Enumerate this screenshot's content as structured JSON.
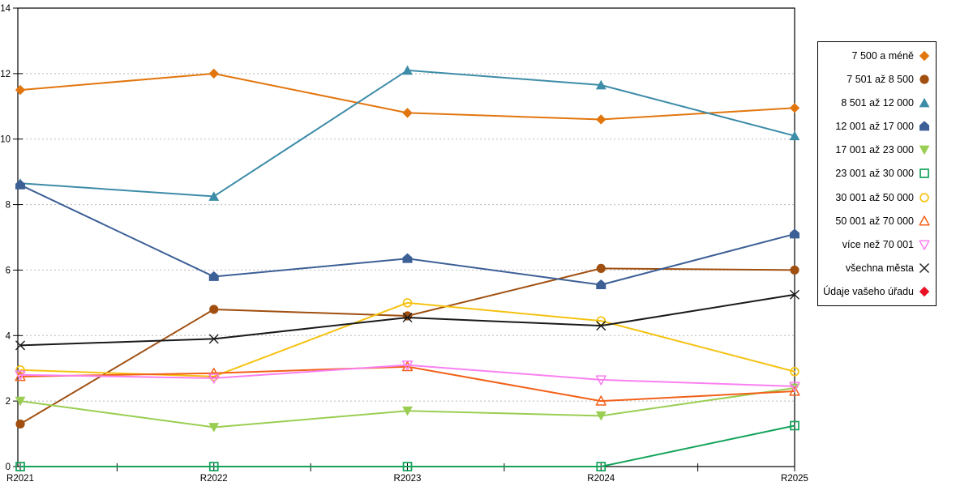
{
  "chart_data": {
    "type": "line",
    "title": "",
    "xlabel": "",
    "ylabel": "",
    "categories": [
      "R2021",
      "R2022",
      "R2023",
      "R2024",
      "R2025"
    ],
    "ylim": [
      0,
      14
    ],
    "yticks": [
      0,
      2,
      4,
      6,
      8,
      10,
      12,
      14
    ],
    "grid": "horizontal-dashed",
    "grid_color": "#bbbbbb",
    "axis_color": "#000000",
    "legend_position": "right",
    "series": [
      {
        "name": "7 500 a méně",
        "marker": "diamond",
        "color": "#e2760e",
        "values": [
          11.5,
          12.0,
          10.8,
          10.6,
          10.95
        ]
      },
      {
        "name": "7 501 až 8 500",
        "marker": "circle",
        "color": "#a04f10",
        "values": [
          1.3,
          4.8,
          4.6,
          6.05,
          6.0
        ]
      },
      {
        "name": "8 501 až 12 000",
        "marker": "triangle-up",
        "color": "#3d8ca8",
        "values": [
          8.65,
          8.25,
          12.1,
          11.65,
          10.1
        ]
      },
      {
        "name": "12 001 až 17 000",
        "marker": "pentagon",
        "color": "#3c5f96",
        "values": [
          8.6,
          5.8,
          6.35,
          5.55,
          7.1
        ]
      },
      {
        "name": "17 001 až 23 000",
        "marker": "triangle-down",
        "color": "#9ace52",
        "values": [
          2.0,
          1.2,
          1.7,
          1.55,
          2.4
        ]
      },
      {
        "name": "23 001 až 30 000",
        "marker": "square-open",
        "color": "#12a35a",
        "values": [
          0,
          0,
          0,
          0,
          1.25
        ]
      },
      {
        "name": "30 001 až 50 000",
        "marker": "circle-open",
        "color": "#f5c211",
        "values": [
          2.95,
          2.75,
          5.0,
          4.45,
          2.9
        ]
      },
      {
        "name": "50 001 až 70 000",
        "marker": "triangle-up-open",
        "color": "#f26018",
        "values": [
          2.75,
          2.85,
          3.05,
          2.0,
          2.3
        ]
      },
      {
        "name": "více než 70 001",
        "marker": "triangle-down-open",
        "color": "#fa80f0",
        "values": [
          2.8,
          2.7,
          3.1,
          2.65,
          2.45
        ]
      },
      {
        "name": "všechna města",
        "marker": "x",
        "color": "#1a1a1a",
        "values": [
          3.7,
          3.9,
          4.55,
          4.3,
          5.25
        ]
      },
      {
        "name": "Údaje vašeho úřadu",
        "marker": "diamond",
        "color": "#e81123",
        "values": [
          null,
          null,
          null,
          null,
          null
        ]
      }
    ]
  }
}
